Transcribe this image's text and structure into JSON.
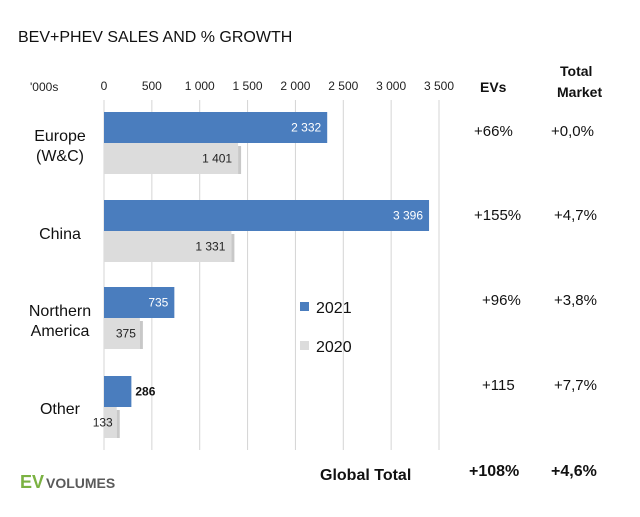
{
  "chart_data": {
    "type": "bar",
    "orientation": "horizontal",
    "title": "BEV+PHEV SALES AND % GROWTH",
    "unit_label": "'000s",
    "categories": [
      "Europe\n(W&C)",
      "China",
      "Northern\nAmerica",
      "Other"
    ],
    "series": [
      {
        "name": "2021",
        "values": [
          2332,
          3396,
          735,
          286
        ],
        "labels": [
          "2 332",
          "3 396",
          "735",
          "286"
        ],
        "color": "#4a7dbe"
      },
      {
        "name": "2020",
        "values": [
          1401,
          1331,
          375,
          133
        ],
        "labels": [
          "1 401",
          "1 331",
          "375",
          "133"
        ],
        "color": "#dcdcdc"
      }
    ],
    "xlim": [
      0,
      3500
    ],
    "xticks": [
      0,
      500,
      1000,
      1500,
      2000,
      2500,
      3000,
      3500
    ],
    "xtick_labels": [
      "0",
      "500",
      "1 000",
      "1 500",
      "2 000",
      "2 500",
      "3 000",
      "3 500"
    ],
    "grid": true,
    "legend_placement": "center"
  },
  "columns": {
    "evs_header": "EVs",
    "market_header_line1": "Total",
    "market_header_line2": "Market"
  },
  "growth": {
    "evs": [
      "+66%",
      "+155%",
      "+96%",
      "+115"
    ],
    "market": [
      "+0,0%",
      "+4,7%",
      "+3,8%",
      "+7,7%"
    ]
  },
  "footer": {
    "label": "Global Total",
    "evs": "+108%",
    "market": "+4,6%"
  },
  "logo": {
    "ev": "EV",
    "volumes": "VOLUMES"
  },
  "colors": {
    "bar_2021": "#4a7dbe",
    "bar_2020": "#dcdcdc",
    "grid": "#d4d4d4",
    "logo_green": "#7bb242"
  }
}
